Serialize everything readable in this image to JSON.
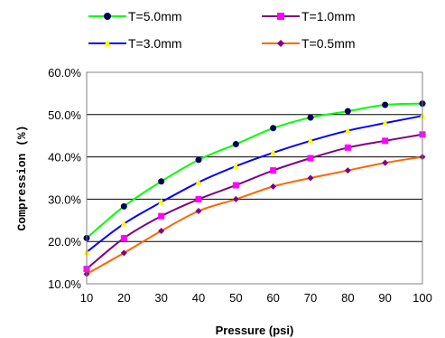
{
  "chart_data": {
    "type": "line",
    "xlabel": "Pressure (psi)",
    "ylabel": "Compression (%)",
    "x": [
      10,
      20,
      30,
      40,
      50,
      60,
      70,
      80,
      90,
      100
    ],
    "x_ticks": [
      "10",
      "20",
      "30",
      "40",
      "50",
      "60",
      "70",
      "80",
      "90",
      "100"
    ],
    "xlim": [
      10,
      100
    ],
    "ylim": [
      10,
      60
    ],
    "y_ticks": [
      "10.0%",
      "20.0%",
      "30.0%",
      "40.0%",
      "50.0%",
      "60.0%"
    ],
    "y_tick_values": [
      10,
      20,
      30,
      40,
      50,
      60
    ],
    "grid": "horizontal",
    "legend_position": "top",
    "series": [
      {
        "name": "T=5.0mm",
        "color": "#00ff00",
        "marker": "circle",
        "marker_color": "#00005a",
        "values": [
          20.8,
          28.3,
          34.2,
          39.3,
          43.0,
          46.8,
          49.3,
          50.8,
          52.3,
          52.6
        ]
      },
      {
        "name": "T=1.0mm",
        "color": "#800080",
        "marker": "square",
        "marker_color": "#ff00ff",
        "values": [
          13.5,
          20.8,
          26.0,
          30.0,
          33.3,
          36.8,
          39.7,
          42.2,
          43.8,
          45.3
        ]
      },
      {
        "name": "T=3.0mm",
        "color": "#0000ff",
        "marker": "triangle",
        "marker_color": "#ffff00",
        "values": [
          17.5,
          24.2,
          29.3,
          34.0,
          37.8,
          41.0,
          43.8,
          46.2,
          48.0,
          49.7
        ]
      },
      {
        "name": "T=0.5mm",
        "color": "#ff6600",
        "marker": "diamond",
        "marker_color": "#800080",
        "values": [
          12.3,
          17.3,
          22.5,
          27.2,
          30.0,
          33.0,
          35.0,
          36.8,
          38.6,
          40.0
        ]
      }
    ]
  }
}
